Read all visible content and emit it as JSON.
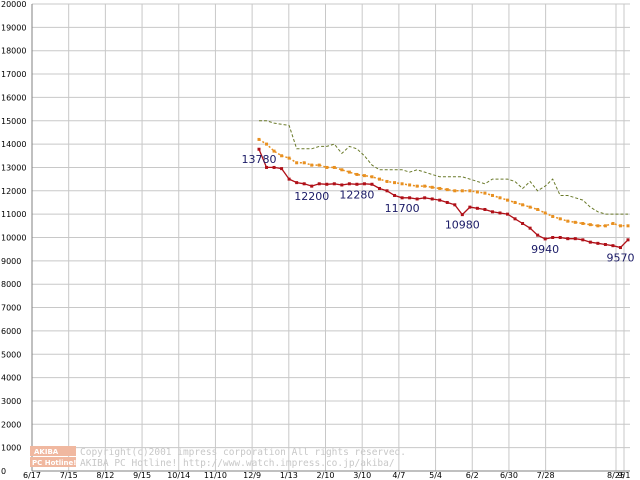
{
  "chart_data": {
    "type": "line",
    "title": "",
    "xlabel": "",
    "ylabel": "",
    "ylim": [
      0,
      20000
    ],
    "ytick_step": 1000,
    "yticks": [
      "0",
      "1000",
      "2000",
      "3000",
      "4000",
      "5000",
      "6000",
      "7000",
      "8000",
      "9000",
      "10000",
      "11000",
      "12000",
      "13000",
      "14000",
      "15000",
      "16000",
      "17000",
      "18000",
      "19000",
      "20000"
    ],
    "xticks": [
      "6/17",
      "7/15",
      "8/12",
      "9/15",
      "10/14",
      "11/10",
      "12/9",
      "1/13",
      "2/10",
      "3/10",
      "4/7",
      "5/4",
      "6/2",
      "6/30",
      "7/28",
      "8/25",
      "9/1"
    ],
    "grid": true,
    "legend": "none",
    "series": [
      {
        "color": "#b01018",
        "style": "solid-marker",
        "values": [
          13780,
          13000,
          13000,
          12950,
          12500,
          12350,
          12300,
          12200,
          12300,
          12280,
          12300,
          12250,
          12300,
          12280,
          12300,
          12280,
          12100,
          12000,
          11800,
          11700,
          11700,
          11650,
          11700,
          11650,
          11600,
          11500,
          11400,
          10980,
          11300,
          11250,
          11200,
          11100,
          11050,
          11000,
          10800,
          10600,
          10400,
          10100,
          9940,
          10000,
          10000,
          9950,
          9950,
          9900,
          9800,
          9750,
          9700,
          9650,
          9570,
          9900
        ]
      },
      {
        "color": "#e89020",
        "style": "dotted-marker",
        "values": [
          14200,
          14000,
          13700,
          13500,
          13400,
          13200,
          13200,
          13100,
          13100,
          13000,
          13000,
          12900,
          12800,
          12700,
          12650,
          12600,
          12500,
          12400,
          12350,
          12300,
          12250,
          12200,
          12200,
          12150,
          12100,
          12050,
          12000,
          12000,
          12000,
          11950,
          11900,
          11800,
          11700,
          11600,
          11500,
          11400,
          11300,
          11200,
          11050,
          10900,
          10800,
          10700,
          10650,
          10600,
          10550,
          10500,
          10500,
          10600,
          10500,
          10500
        ]
      },
      {
        "color": "#6a7a2a",
        "style": "dashed",
        "values": [
          15000,
          15000,
          14900,
          14850,
          14800,
          13800,
          13800,
          13800,
          13900,
          13900,
          14000,
          13600,
          13900,
          13800,
          13500,
          13100,
          12900,
          12900,
          12900,
          12900,
          12800,
          12900,
          12800,
          12700,
          12600,
          12600,
          12600,
          12600,
          12500,
          12400,
          12300,
          12500,
          12500,
          12500,
          12400,
          12100,
          12400,
          12000,
          12200,
          12500,
          11800,
          11800,
          11700,
          11600,
          11300,
          11100,
          11000,
          11000,
          11000,
          11000
        ]
      }
    ],
    "point_labels": [
      {
        "text": "13780",
        "series": 0,
        "index": 0
      },
      {
        "text": "12200",
        "series": 0,
        "index": 7
      },
      {
        "text": "12280",
        "series": 0,
        "index": 13
      },
      {
        "text": "11700",
        "series": 0,
        "index": 19
      },
      {
        "text": "10980",
        "series": 0,
        "index": 27
      },
      {
        "text": "9940",
        "series": 0,
        "index": 38
      },
      {
        "text": "9570",
        "series": 0,
        "index": 48
      }
    ]
  },
  "watermark": {
    "logo_top": "AKIBA",
    "logo_bottom": "PC Hotline!",
    "line1": "Copyright(c)2001 impress corporation All rights reserved.",
    "line2": "AKIBA PC Hotline!  http://www.watch.impress.co.jp/akiba/"
  }
}
